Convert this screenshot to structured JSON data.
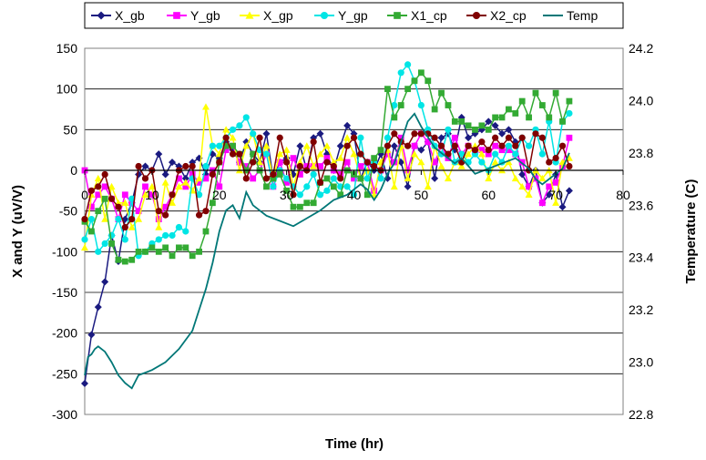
{
  "chart_data": {
    "type": "line",
    "xlabel": "Time (hr)",
    "ylabel": "X and Y (uV/V)",
    "y2label": "Temperature (C)",
    "xlim": [
      0,
      80
    ],
    "ylim": [
      -300,
      150
    ],
    "y2lim": [
      22.8,
      24.2
    ],
    "xticks": [
      "0",
      "10",
      "20",
      "30",
      "40",
      "50",
      "60",
      "70",
      "80"
    ],
    "yticks": [
      "150",
      "100",
      "50",
      "0",
      "-50",
      "-100",
      "-150",
      "-200",
      "-250",
      "-300"
    ],
    "y2ticks": [
      "24.2",
      "24.0",
      "23.8",
      "23.6",
      "23.4",
      "23.2",
      "23.0",
      "22.8"
    ],
    "grid": true,
    "legend_position": "top",
    "series": [
      {
        "name": "X_gb",
        "color": "#1a1a80",
        "marker": "diamond",
        "axis": "left",
        "x": [
          0,
          1,
          2,
          3,
          4,
          5,
          6,
          7,
          8,
          9,
          10,
          11,
          12,
          13,
          14,
          15,
          16,
          17,
          18,
          19,
          20,
          21,
          22,
          23,
          24,
          25,
          26,
          27,
          28,
          29,
          30,
          31,
          32,
          33,
          34,
          35,
          36,
          37,
          38,
          39,
          40,
          41,
          42,
          43,
          44,
          45,
          46,
          47,
          48,
          49,
          50,
          51,
          52,
          53,
          54,
          55,
          56,
          57,
          58,
          59,
          60,
          61,
          62,
          63,
          64,
          65,
          66,
          67,
          68,
          69,
          70,
          71,
          72
        ],
        "y": [
          -262,
          -202,
          -168,
          -137,
          -80,
          -112,
          -60,
          -40,
          -5,
          5,
          0,
          20,
          -5,
          10,
          5,
          -10,
          10,
          15,
          -5,
          20,
          15,
          35,
          25,
          10,
          35,
          20,
          10,
          45,
          -10,
          10,
          15,
          -5,
          30,
          0,
          40,
          45,
          20,
          0,
          30,
          55,
          45,
          -10,
          10,
          0,
          20,
          -10,
          30,
          10,
          -20,
          30,
          25,
          35,
          -10,
          40,
          45,
          25,
          65,
          40,
          45,
          50,
          60,
          55,
          45,
          50,
          35,
          -5,
          -20,
          0,
          -40,
          -30,
          -5,
          -45,
          -25
        ]
      },
      {
        "name": "Y_gb",
        "color": "#ff00ff",
        "marker": "square",
        "axis": "left",
        "x": [
          0,
          1,
          2,
          3,
          4,
          5,
          6,
          7,
          8,
          9,
          10,
          11,
          12,
          13,
          14,
          15,
          16,
          17,
          18,
          19,
          20,
          21,
          22,
          23,
          24,
          25,
          26,
          27,
          28,
          29,
          30,
          31,
          32,
          33,
          34,
          35,
          36,
          37,
          38,
          39,
          40,
          41,
          42,
          43,
          44,
          45,
          46,
          47,
          48,
          49,
          50,
          51,
          52,
          53,
          54,
          55,
          56,
          57,
          58,
          59,
          60,
          61,
          62,
          63,
          64,
          65,
          66,
          67,
          68,
          69,
          70,
          71,
          72
        ],
        "y": [
          0,
          -45,
          -30,
          -20,
          -35,
          -60,
          -30,
          -40,
          -50,
          -20,
          -30,
          -60,
          -45,
          -30,
          -10,
          -20,
          -5,
          -15,
          -10,
          0,
          -20,
          25,
          30,
          10,
          5,
          -10,
          0,
          20,
          -20,
          10,
          -15,
          15,
          -5,
          5,
          5,
          5,
          15,
          0,
          -5,
          10,
          -10,
          5,
          10,
          -25,
          0,
          20,
          10,
          40,
          0,
          30,
          45,
          35,
          10,
          30,
          15,
          40,
          20,
          30,
          25,
          25,
          20,
          30,
          25,
          25,
          20,
          10,
          -20,
          -10,
          -40,
          -20,
          -15,
          5,
          40
        ]
      },
      {
        "name": "X_gp",
        "color": "#ffff00",
        "marker": "triangle",
        "axis": "left",
        "x": [
          0,
          1,
          2,
          3,
          4,
          5,
          6,
          7,
          8,
          9,
          10,
          11,
          12,
          13,
          14,
          15,
          16,
          17,
          18,
          19,
          20,
          21,
          22,
          23,
          24,
          25,
          26,
          27,
          28,
          29,
          30,
          31,
          32,
          33,
          34,
          35,
          36,
          37,
          38,
          39,
          40,
          41,
          42,
          43,
          44,
          45,
          46,
          47,
          48,
          49,
          50,
          51,
          52,
          53,
          54,
          55,
          56,
          57,
          58,
          59,
          60,
          61,
          62,
          63,
          64,
          65,
          66,
          67,
          68,
          69,
          70,
          71,
          72
        ],
        "y": [
          -95,
          -30,
          -10,
          -60,
          -20,
          -40,
          -40,
          -70,
          -60,
          -30,
          -20,
          -70,
          -15,
          -40,
          -20,
          -15,
          -25,
          -10,
          78,
          30,
          20,
          50,
          40,
          0,
          30,
          45,
          10,
          30,
          -10,
          20,
          25,
          -20,
          10,
          30,
          5,
          20,
          30,
          10,
          15,
          40,
          20,
          -10,
          0,
          -30,
          10,
          25,
          -20,
          30,
          -10,
          20,
          10,
          -20,
          30,
          5,
          -10,
          10,
          5,
          20,
          30,
          20,
          -10,
          10,
          0,
          10,
          -10,
          -20,
          -30,
          0,
          -10,
          0,
          -40,
          10,
          15
        ]
      },
      {
        "name": "Y_gp",
        "color": "#00e5e5",
        "marker": "circle",
        "axis": "left",
        "x": [
          0,
          1,
          2,
          3,
          4,
          5,
          6,
          7,
          8,
          9,
          10,
          11,
          12,
          13,
          14,
          15,
          16,
          17,
          18,
          19,
          20,
          21,
          22,
          23,
          24,
          25,
          26,
          27,
          28,
          29,
          30,
          31,
          32,
          33,
          34,
          35,
          36,
          37,
          38,
          39,
          40,
          41,
          42,
          43,
          44,
          45,
          46,
          47,
          48,
          49,
          50,
          51,
          52,
          53,
          54,
          55,
          56,
          57,
          58,
          59,
          60,
          61,
          62,
          63,
          64,
          65,
          66,
          67,
          68,
          69,
          70,
          71,
          72
        ],
        "y": [
          -85,
          -60,
          -100,
          -90,
          -80,
          -60,
          -85,
          -35,
          -105,
          -100,
          -90,
          -85,
          -80,
          -80,
          -70,
          -75,
          -10,
          -30,
          5,
          30,
          30,
          40,
          50,
          55,
          65,
          45,
          25,
          20,
          -20,
          0,
          -10,
          -20,
          -30,
          -20,
          -5,
          -30,
          -25,
          -10,
          -20,
          -20,
          -30,
          40,
          -10,
          10,
          -10,
          40,
          80,
          120,
          130,
          110,
          80,
          50,
          30,
          20,
          50,
          10,
          20,
          10,
          20,
          10,
          0,
          20,
          10,
          30,
          20,
          40,
          30,
          50,
          20,
          60,
          10,
          60,
          70
        ]
      },
      {
        "name": "X1_cp",
        "color": "#33aa33",
        "marker": "square",
        "axis": "left",
        "x": [
          0,
          1,
          2,
          3,
          4,
          5,
          6,
          7,
          8,
          9,
          10,
          11,
          12,
          13,
          14,
          15,
          16,
          17,
          18,
          19,
          20,
          21,
          22,
          23,
          24,
          25,
          26,
          27,
          28,
          29,
          30,
          31,
          32,
          33,
          34,
          35,
          36,
          37,
          38,
          39,
          40,
          41,
          42,
          43,
          44,
          45,
          46,
          47,
          48,
          49,
          50,
          51,
          52,
          53,
          54,
          55,
          56,
          57,
          58,
          59,
          60,
          61,
          62,
          63,
          64,
          65,
          66,
          67,
          68,
          69,
          70,
          71,
          72
        ],
        "y": [
          -63,
          -75,
          -50,
          -35,
          -90,
          -110,
          -112,
          -110,
          -100,
          -100,
          -95,
          -100,
          -95,
          -105,
          -95,
          -95,
          -105,
          -100,
          -75,
          -40,
          10,
          30,
          30,
          20,
          0,
          20,
          0,
          -20,
          -10,
          -5,
          -25,
          -45,
          -45,
          -40,
          -40,
          -15,
          -10,
          -20,
          -30,
          0,
          -5,
          -10,
          -30,
          15,
          25,
          100,
          65,
          80,
          100,
          110,
          120,
          110,
          75,
          95,
          80,
          60,
          60,
          55,
          50,
          55,
          50,
          65,
          65,
          75,
          70,
          85,
          65,
          95,
          80,
          65,
          95,
          60,
          85
        ]
      },
      {
        "name": "X2_cp",
        "color": "#800000",
        "marker": "circle",
        "axis": "left",
        "x": [
          0,
          1,
          2,
          3,
          4,
          5,
          6,
          7,
          8,
          9,
          10,
          11,
          12,
          13,
          14,
          15,
          16,
          17,
          18,
          19,
          20,
          21,
          22,
          23,
          24,
          25,
          26,
          27,
          28,
          29,
          30,
          31,
          32,
          33,
          34,
          35,
          36,
          37,
          38,
          39,
          40,
          41,
          42,
          43,
          44,
          45,
          46,
          47,
          48,
          49,
          50,
          51,
          52,
          53,
          54,
          55,
          56,
          57,
          58,
          59,
          60,
          61,
          62,
          63,
          64,
          65,
          66,
          67,
          68,
          69,
          70,
          71,
          72
        ],
        "y": [
          -60,
          -25,
          -20,
          -5,
          -35,
          -45,
          -70,
          -60,
          5,
          -10,
          0,
          -50,
          -55,
          -30,
          0,
          5,
          5,
          -55,
          -50,
          -5,
          10,
          40,
          20,
          20,
          -10,
          10,
          40,
          -10,
          -5,
          40,
          10,
          -30,
          5,
          0,
          35,
          -15,
          10,
          5,
          -10,
          30,
          40,
          20,
          10,
          5,
          0,
          30,
          45,
          35,
          30,
          45,
          45,
          45,
          40,
          30,
          20,
          30,
          10,
          30,
          25,
          35,
          25,
          40,
          30,
          40,
          30,
          40,
          0,
          45,
          40,
          10,
          15,
          30,
          5
        ]
      },
      {
        "name": "Temp",
        "color": "#007777",
        "marker": "none",
        "axis": "right",
        "x": [
          0,
          0.5,
          1,
          1.5,
          2,
          3,
          4,
          5,
          6,
          7,
          8,
          9,
          10,
          12,
          14,
          16,
          17,
          18,
          19,
          20,
          21,
          22,
          23,
          24,
          25,
          27,
          29,
          31,
          33,
          35,
          37,
          39,
          41,
          42,
          43,
          44,
          45,
          46,
          47,
          48,
          49,
          50,
          51,
          52,
          53,
          54,
          55,
          56,
          57,
          58,
          60,
          62,
          64,
          66,
          67,
          68,
          69,
          70,
          71,
          72
        ],
        "y": [
          22.95,
          23.02,
          23.03,
          23.05,
          23.06,
          23.04,
          23.0,
          22.95,
          22.92,
          22.9,
          22.95,
          22.96,
          22.97,
          23.0,
          23.05,
          23.12,
          23.2,
          23.28,
          23.38,
          23.5,
          23.58,
          23.6,
          23.55,
          23.65,
          23.6,
          23.56,
          23.54,
          23.52,
          23.55,
          23.58,
          23.62,
          23.64,
          23.68,
          23.66,
          23.62,
          23.66,
          23.72,
          23.76,
          23.84,
          23.92,
          23.95,
          23.9,
          23.86,
          23.82,
          23.8,
          23.78,
          23.76,
          23.78,
          23.75,
          23.72,
          23.74,
          23.76,
          23.78,
          23.74,
          23.7,
          23.68,
          23.7,
          23.72,
          23.74,
          23.8
        ]
      }
    ]
  }
}
